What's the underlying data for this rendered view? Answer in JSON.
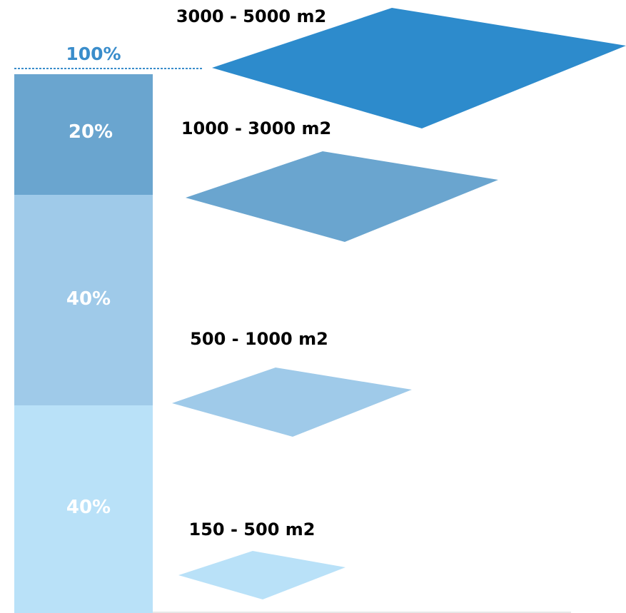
{
  "total": {
    "label": "100%",
    "color": "#3a8dcb"
  },
  "segments": [
    {
      "label": "20%",
      "value": 20,
      "color": "#6aa5cf"
    },
    {
      "label": "40%",
      "value": 40,
      "color": "#9fcae9"
    },
    {
      "label": "40%",
      "value": 40,
      "color": "#b9e1f8"
    }
  ],
  "plots": [
    {
      "label": "3000 - 5000 m2",
      "color": "#2d8bcc"
    },
    {
      "label": "1000 - 3000 m2",
      "color": "#6aa5cf"
    },
    {
      "label": "500 - 1000 m2",
      "color": "#9fcae9"
    },
    {
      "label": "150 - 500 m2",
      "color": "#b9e1f8"
    }
  ]
}
